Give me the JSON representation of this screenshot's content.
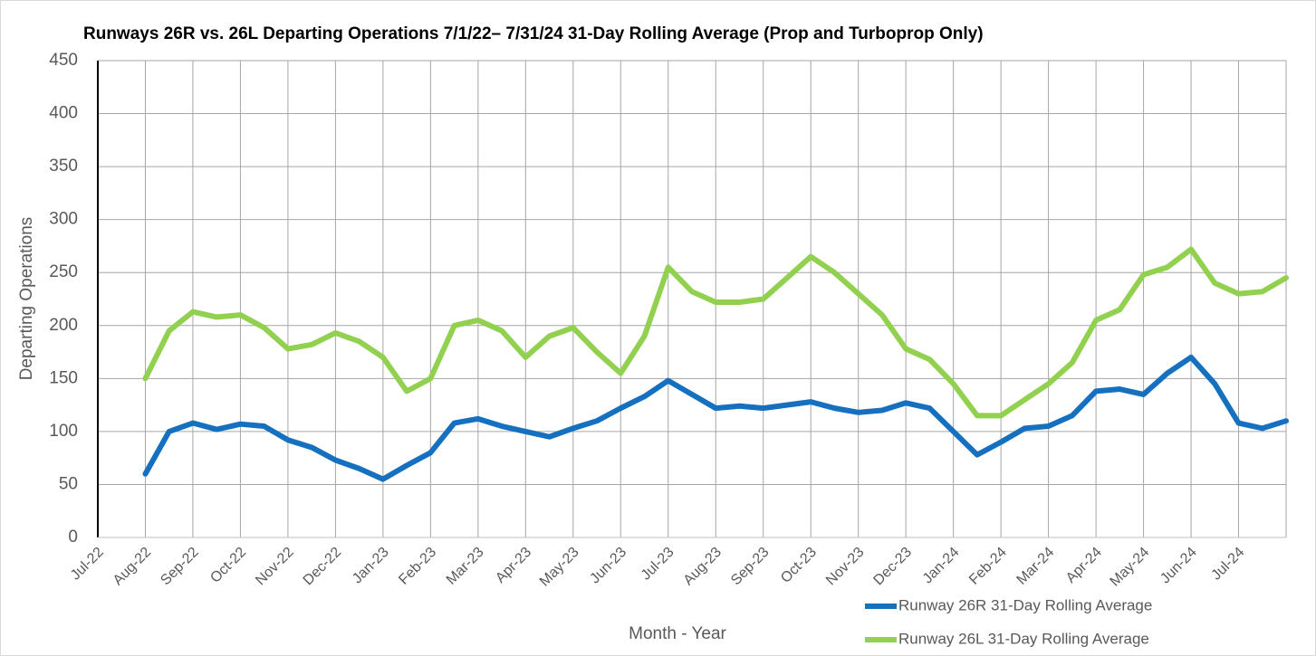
{
  "chart_data": {
    "type": "line",
    "title": "Runways 26R vs. 26L Departing Operations 7/1/22– 7/31/24  31-Day Rolling Average (Prop and Turboprop Only)",
    "x_label": "Month - Year",
    "y_label": "Departing Operations",
    "categories": [
      "Jul-22",
      null,
      "Aug-22",
      null,
      "Sep-22",
      null,
      "Oct-22",
      null,
      "Nov-22",
      null,
      "Dec-22",
      null,
      "Jan-23",
      null,
      "Feb-23",
      null,
      "Mar-23",
      null,
      "Apr-23",
      null,
      "May-23",
      null,
      "Jun-23",
      null,
      "Jul-23",
      null,
      "Aug-23",
      null,
      "Sep-23",
      null,
      "Oct-23",
      null,
      "Nov-23",
      null,
      "Dec-23",
      null,
      "Jan-24",
      null,
      "Feb-24",
      null,
      "Mar-24",
      null,
      "Apr-24",
      null,
      "May-24",
      null,
      "Jun-24",
      null,
      "Jul-24",
      null,
      null
    ],
    "series": [
      {
        "name": "Runway 26R 31-Day Rolling Average",
        "color": "#1670c0",
        "values": [
          null,
          null,
          60,
          100,
          108,
          102,
          107,
          105,
          92,
          85,
          73,
          65,
          55,
          68,
          80,
          108,
          112,
          105,
          100,
          95,
          103,
          110,
          122,
          133,
          148,
          135,
          122,
          124,
          122,
          125,
          128,
          122,
          118,
          120,
          127,
          122,
          100,
          78,
          90,
          103,
          105,
          115,
          138,
          140,
          135,
          155,
          170,
          145,
          108,
          103,
          110
        ]
      },
      {
        "name": "Runway 26L 31-Day Rolling Average",
        "color": "#92d050",
        "values": [
          null,
          null,
          150,
          195,
          213,
          208,
          210,
          198,
          178,
          182,
          193,
          185,
          170,
          138,
          150,
          200,
          205,
          195,
          170,
          190,
          198,
          175,
          155,
          190,
          255,
          232,
          222,
          222,
          225,
          245,
          265,
          250,
          230,
          210,
          178,
          168,
          145,
          115,
          115,
          130,
          145,
          165,
          205,
          215,
          248,
          255,
          272,
          240,
          230,
          232,
          245
        ]
      }
    ],
    "ylim": [
      0,
      450
    ],
    "yticks": [
      0,
      50,
      100,
      150,
      200,
      250,
      300,
      350,
      400,
      450
    ],
    "grid": true
  }
}
